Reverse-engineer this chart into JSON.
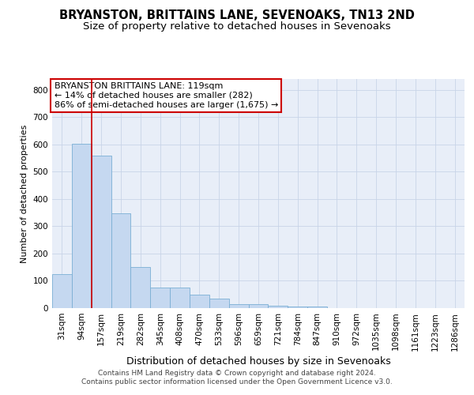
{
  "title": "BRYANSTON, BRITTAINS LANE, SEVENOAKS, TN13 2ND",
  "subtitle": "Size of property relative to detached houses in Sevenoaks",
  "xlabel": "Distribution of detached houses by size in Sevenoaks",
  "ylabel": "Number of detached properties",
  "categories": [
    "31sqm",
    "94sqm",
    "157sqm",
    "219sqm",
    "282sqm",
    "345sqm",
    "408sqm",
    "470sqm",
    "533sqm",
    "596sqm",
    "659sqm",
    "721sqm",
    "784sqm",
    "847sqm",
    "910sqm",
    "972sqm",
    "1035sqm",
    "1098sqm",
    "1161sqm",
    "1223sqm",
    "1286sqm"
  ],
  "values": [
    125,
    603,
    558,
    347,
    150,
    75,
    75,
    50,
    35,
    14,
    14,
    10,
    5,
    5,
    0,
    0,
    0,
    0,
    0,
    0,
    0
  ],
  "bar_color": "#c5d8f0",
  "bar_edge_color": "#7aafd4",
  "grid_color": "#c8d4e8",
  "background_color": "#ffffff",
  "plot_bg_color": "#e8eef8",
  "annotation_box_text": "BRYANSTON BRITTAINS LANE: 119sqm\n← 14% of detached houses are smaller (282)\n86% of semi-detached houses are larger (1,675) →",
  "annotation_box_color": "#ffffff",
  "annotation_box_edge_color": "#cc0000",
  "vline_x": 1.5,
  "vline_color": "#cc0000",
  "ylim": [
    0,
    840
  ],
  "yticks": [
    0,
    100,
    200,
    300,
    400,
    500,
    600,
    700,
    800
  ],
  "footnote": "Contains HM Land Registry data © Crown copyright and database right 2024.\nContains public sector information licensed under the Open Government Licence v3.0.",
  "title_fontsize": 10.5,
  "subtitle_fontsize": 9.5,
  "xlabel_fontsize": 9,
  "ylabel_fontsize": 8,
  "tick_fontsize": 7.5,
  "annotation_fontsize": 8,
  "footnote_fontsize": 6.5
}
